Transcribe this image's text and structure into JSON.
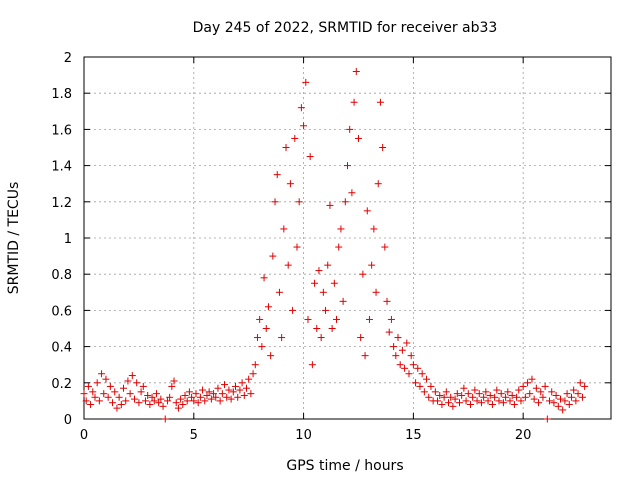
{
  "chart_data": {
    "type": "scatter",
    "title": "Day 245 of 2022, SRMTID for receiver ab33",
    "xlabel": "GPS time / hours",
    "ylabel": "SRMTID / TECUs",
    "xlim": [
      0,
      24
    ],
    "ylim": [
      0,
      2
    ],
    "xticks": [
      {
        "value": 0,
        "label": "0"
      },
      {
        "value": 5,
        "label": "5"
      },
      {
        "value": 10,
        "label": "10"
      },
      {
        "value": 15,
        "label": "15"
      },
      {
        "value": 20,
        "label": "20"
      }
    ],
    "yticks": [
      {
        "value": 0,
        "label": "0"
      },
      {
        "value": 0.2,
        "label": "0.2"
      },
      {
        "value": 0.4,
        "label": "0.4"
      },
      {
        "value": 0.6,
        "label": "0.6"
      },
      {
        "value": 0.8,
        "label": "0.8"
      },
      {
        "value": 1.0,
        "label": "1"
      },
      {
        "value": 1.2,
        "label": "1.2"
      },
      {
        "value": 1.4,
        "label": "1.4"
      },
      {
        "value": 1.6,
        "label": "1.6"
      },
      {
        "value": 1.8,
        "label": "1.8"
      },
      {
        "value": 2.0,
        "label": "2"
      }
    ],
    "grid": true,
    "marker": "+",
    "color": "#e00000",
    "series": [
      {
        "name": "SRMTID",
        "points": [
          [
            0.0,
            0.14
          ],
          [
            0.1,
            0.1
          ],
          [
            0.2,
            0.18
          ],
          [
            0.3,
            0.08
          ],
          [
            0.4,
            0.15
          ],
          [
            0.5,
            0.12
          ],
          [
            0.6,
            0.2
          ],
          [
            0.7,
            0.1
          ],
          [
            0.8,
            0.25
          ],
          [
            0.9,
            0.14
          ],
          [
            1.0,
            0.22
          ],
          [
            1.1,
            0.12
          ],
          [
            1.2,
            0.18
          ],
          [
            1.3,
            0.09
          ],
          [
            1.4,
            0.15
          ],
          [
            1.5,
            0.06
          ],
          [
            1.6,
            0.12
          ],
          [
            1.7,
            0.08
          ],
          [
            1.8,
            0.17
          ],
          [
            1.9,
            0.1
          ],
          [
            2.0,
            0.21
          ],
          [
            2.1,
            0.14
          ],
          [
            2.2,
            0.24
          ],
          [
            2.3,
            0.11
          ],
          [
            2.4,
            0.2
          ],
          [
            2.5,
            0.09
          ],
          [
            2.6,
            0.15
          ],
          [
            2.7,
            0.18
          ],
          [
            2.8,
            0.1
          ],
          [
            2.9,
            0.13
          ],
          [
            3.0,
            0.08
          ],
          [
            3.1,
            0.12
          ],
          [
            3.2,
            0.1
          ],
          [
            3.3,
            0.14
          ],
          [
            3.4,
            0.09
          ],
          [
            3.5,
            0.11
          ],
          [
            3.6,
            0.07
          ],
          [
            3.7,
            0.0
          ],
          [
            3.8,
            0.1
          ],
          [
            3.9,
            0.12
          ],
          [
            4.0,
            0.18
          ],
          [
            4.1,
            0.21
          ],
          [
            4.2,
            0.09
          ],
          [
            4.3,
            0.06
          ],
          [
            4.4,
            0.11
          ],
          [
            4.5,
            0.08
          ],
          [
            4.6,
            0.13
          ],
          [
            4.7,
            0.1
          ],
          [
            4.8,
            0.15
          ],
          [
            4.9,
            0.12
          ],
          [
            5.0,
            0.1
          ],
          [
            5.1,
            0.14
          ],
          [
            5.2,
            0.09
          ],
          [
            5.3,
            0.12
          ],
          [
            5.4,
            0.16
          ],
          [
            5.5,
            0.1
          ],
          [
            5.6,
            0.13
          ],
          [
            5.7,
            0.15
          ],
          [
            5.8,
            0.11
          ],
          [
            5.9,
            0.14
          ],
          [
            6.0,
            0.12
          ],
          [
            6.1,
            0.17
          ],
          [
            6.2,
            0.1
          ],
          [
            6.3,
            0.14
          ],
          [
            6.4,
            0.19
          ],
          [
            6.5,
            0.12
          ],
          [
            6.6,
            0.16
          ],
          [
            6.7,
            0.11
          ],
          [
            6.8,
            0.15
          ],
          [
            6.9,
            0.18
          ],
          [
            7.0,
            0.12
          ],
          [
            7.1,
            0.16
          ],
          [
            7.2,
            0.2
          ],
          [
            7.3,
            0.13
          ],
          [
            7.4,
            0.17
          ],
          [
            7.5,
            0.22
          ],
          [
            7.6,
            0.14
          ],
          [
            7.7,
            0.25
          ],
          [
            7.8,
            0.3
          ],
          [
            7.9,
            0.45
          ],
          [
            8.0,
            0.55
          ],
          [
            8.1,
            0.4
          ],
          [
            8.2,
            0.78
          ],
          [
            8.3,
            0.5
          ],
          [
            8.4,
            0.62
          ],
          [
            8.5,
            0.35
          ],
          [
            8.6,
            0.9
          ],
          [
            8.7,
            1.2
          ],
          [
            8.8,
            1.35
          ],
          [
            8.9,
            0.7
          ],
          [
            9.0,
            0.45
          ],
          [
            9.1,
            1.05
          ],
          [
            9.2,
            1.5
          ],
          [
            9.3,
            0.85
          ],
          [
            9.4,
            1.3
          ],
          [
            9.5,
            0.6
          ],
          [
            9.6,
            1.55
          ],
          [
            9.7,
            0.95
          ],
          [
            9.8,
            1.2
          ],
          [
            9.9,
            1.72
          ],
          [
            10.0,
            1.62
          ],
          [
            10.1,
            1.86
          ],
          [
            10.2,
            0.55
          ],
          [
            10.3,
            1.45
          ],
          [
            10.4,
            0.3
          ],
          [
            10.5,
            0.75
          ],
          [
            10.6,
            0.5
          ],
          [
            10.7,
            0.82
          ],
          [
            10.8,
            0.45
          ],
          [
            10.9,
            0.7
          ],
          [
            11.0,
            0.6
          ],
          [
            11.1,
            0.85
          ],
          [
            11.2,
            1.18
          ],
          [
            11.3,
            0.5
          ],
          [
            11.4,
            0.75
          ],
          [
            11.5,
            0.55
          ],
          [
            11.6,
            0.95
          ],
          [
            11.7,
            1.05
          ],
          [
            11.8,
            0.65
          ],
          [
            11.9,
            1.2
          ],
          [
            12.0,
            1.4
          ],
          [
            12.1,
            1.6
          ],
          [
            12.2,
            1.25
          ],
          [
            12.3,
            1.75
          ],
          [
            12.4,
            1.92
          ],
          [
            12.5,
            1.55
          ],
          [
            12.6,
            0.45
          ],
          [
            12.7,
            0.8
          ],
          [
            12.8,
            0.35
          ],
          [
            12.9,
            1.15
          ],
          [
            13.0,
            0.55
          ],
          [
            13.1,
            0.85
          ],
          [
            13.2,
            1.05
          ],
          [
            13.3,
            0.7
          ],
          [
            13.4,
            1.3
          ],
          [
            13.5,
            1.75
          ],
          [
            13.6,
            1.5
          ],
          [
            13.7,
            0.95
          ],
          [
            13.8,
            0.65
          ],
          [
            13.9,
            0.48
          ],
          [
            14.0,
            0.55
          ],
          [
            14.1,
            0.4
          ],
          [
            14.2,
            0.35
          ],
          [
            14.3,
            0.45
          ],
          [
            14.4,
            0.3
          ],
          [
            14.5,
            0.38
          ],
          [
            14.6,
            0.28
          ],
          [
            14.7,
            0.42
          ],
          [
            14.8,
            0.25
          ],
          [
            14.9,
            0.35
          ],
          [
            15.0,
            0.3
          ],
          [
            15.1,
            0.2
          ],
          [
            15.2,
            0.28
          ],
          [
            15.3,
            0.18
          ],
          [
            15.4,
            0.25
          ],
          [
            15.5,
            0.15
          ],
          [
            15.6,
            0.22
          ],
          [
            15.7,
            0.12
          ],
          [
            15.8,
            0.18
          ],
          [
            15.9,
            0.1
          ],
          [
            16.0,
            0.15
          ],
          [
            16.1,
            0.1
          ],
          [
            16.2,
            0.13
          ],
          [
            16.3,
            0.08
          ],
          [
            16.4,
            0.12
          ],
          [
            16.5,
            0.15
          ],
          [
            16.6,
            0.09
          ],
          [
            16.7,
            0.12
          ],
          [
            16.8,
            0.07
          ],
          [
            16.9,
            0.11
          ],
          [
            17.0,
            0.14
          ],
          [
            17.1,
            0.09
          ],
          [
            17.2,
            0.13
          ],
          [
            17.3,
            0.17
          ],
          [
            17.4,
            0.1
          ],
          [
            17.5,
            0.14
          ],
          [
            17.6,
            0.08
          ],
          [
            17.7,
            0.12
          ],
          [
            17.8,
            0.16
          ],
          [
            17.9,
            0.1
          ],
          [
            18.0,
            0.14
          ],
          [
            18.1,
            0.09
          ],
          [
            18.2,
            0.12
          ],
          [
            18.3,
            0.15
          ],
          [
            18.4,
            0.1
          ],
          [
            18.5,
            0.13
          ],
          [
            18.6,
            0.08
          ],
          [
            18.7,
            0.12
          ],
          [
            18.8,
            0.16
          ],
          [
            18.9,
            0.1
          ],
          [
            19.0,
            0.14
          ],
          [
            19.1,
            0.09
          ],
          [
            19.2,
            0.12
          ],
          [
            19.3,
            0.15
          ],
          [
            19.4,
            0.1
          ],
          [
            19.5,
            0.13
          ],
          [
            19.6,
            0.08
          ],
          [
            19.7,
            0.12
          ],
          [
            19.8,
            0.16
          ],
          [
            19.9,
            0.1
          ],
          [
            20.0,
            0.18
          ],
          [
            20.1,
            0.12
          ],
          [
            20.2,
            0.2
          ],
          [
            20.3,
            0.14
          ],
          [
            20.4,
            0.22
          ],
          [
            20.5,
            0.11
          ],
          [
            20.6,
            0.17
          ],
          [
            20.7,
            0.09
          ],
          [
            20.8,
            0.15
          ],
          [
            20.9,
            0.12
          ],
          [
            21.0,
            0.18
          ],
          [
            21.1,
            0.0
          ],
          [
            21.2,
            0.1
          ],
          [
            21.3,
            0.15
          ],
          [
            21.4,
            0.09
          ],
          [
            21.5,
            0.13
          ],
          [
            21.6,
            0.07
          ],
          [
            21.7,
            0.11
          ],
          [
            21.8,
            0.05
          ],
          [
            21.9,
            0.1
          ],
          [
            22.0,
            0.14
          ],
          [
            22.1,
            0.08
          ],
          [
            22.2,
            0.12
          ],
          [
            22.3,
            0.16
          ],
          [
            22.4,
            0.1
          ],
          [
            22.5,
            0.14
          ],
          [
            22.6,
            0.2
          ],
          [
            22.7,
            0.12
          ],
          [
            22.8,
            0.18
          ]
        ]
      }
    ]
  }
}
